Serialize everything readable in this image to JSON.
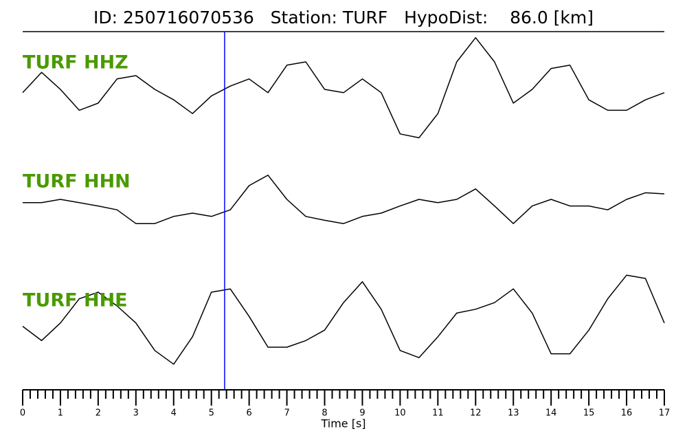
{
  "chart_data": {
    "type": "line",
    "title": "ID: 250716070536   Station: TURF   HypoDist:    86.0 [km]",
    "xlabel": "Time [s]",
    "x": [
      0,
      0.5,
      1,
      1.5,
      2,
      2.5,
      3,
      3.5,
      4,
      4.5,
      5,
      5.5,
      6,
      6.5,
      7,
      7.5,
      8,
      8.5,
      9,
      9.5,
      10,
      10.5,
      11,
      11.5,
      12,
      12.5,
      13,
      13.5,
      14,
      14.5,
      15,
      15.5,
      16,
      16.5,
      17
    ],
    "xlim": [
      0,
      17
    ],
    "xticks": [
      0,
      1,
      2,
      3,
      4,
      5,
      6,
      7,
      8,
      9,
      10,
      11,
      12,
      13,
      14,
      15,
      16,
      17
    ],
    "xminorticks": [
      0.2,
      0.4,
      0.6,
      0.8,
      1.2,
      1.4,
      1.6,
      1.8,
      2.2,
      2.4,
      2.6,
      2.8,
      3.2,
      3.4,
      3.6,
      3.8,
      4.2,
      4.4,
      4.6,
      4.8,
      5.2,
      5.4,
      5.6,
      5.8,
      6.2,
      6.4,
      6.6,
      6.8,
      7.2,
      7.4,
      7.6,
      7.8,
      8.2,
      8.4,
      8.6,
      8.8,
      9.2,
      9.4,
      9.6,
      9.8,
      10.2,
      10.4,
      10.6,
      10.8,
      11.2,
      11.4,
      11.6,
      11.8,
      12.2,
      12.4,
      12.6,
      12.8,
      13.2,
      13.4,
      13.6,
      13.8,
      14.2,
      14.4,
      14.6,
      14.8,
      15.2,
      15.4,
      15.6,
      15.8,
      16.2,
      16.4,
      16.6,
      16.8
    ],
    "ylim": [
      -1,
      1
    ],
    "pick": 5.35,
    "pick_color": "#0000ff",
    "label_color": "#4a9a00",
    "series": [
      {
        "name": "TURF HHZ",
        "color": "#000000",
        "values": [
          -0.06,
          0.31,
          0,
          -0.38,
          -0.25,
          0.19,
          0.25,
          0,
          -0.19,
          -0.44,
          -0.12,
          0.06,
          0.19,
          -0.06,
          0.44,
          0.5,
          0,
          -0.06,
          0.19,
          -0.06,
          -0.81,
          -0.88,
          -0.44,
          0.5,
          0.94,
          0.5,
          -0.25,
          0,
          0.38,
          0.44,
          -0.19,
          -0.38,
          -0.38,
          -0.19,
          -0.06
        ]
      },
      {
        "name": "TURF HHN",
        "color": "#000000",
        "values": [
          -0.06,
          -0.06,
          0,
          -0.06,
          -0.12,
          -0.19,
          -0.44,
          -0.44,
          -0.31,
          -0.25,
          -0.31,
          -0.19,
          0.25,
          0.44,
          0,
          -0.31,
          -0.38,
          -0.44,
          -0.31,
          -0.25,
          -0.12,
          0,
          -0.06,
          0,
          0.19,
          -0.12,
          -0.44,
          -0.12,
          0,
          -0.12,
          -0.12,
          -0.19,
          0,
          0.12,
          0.1
        ]
      },
      {
        "name": "TURF HHE",
        "color": "#000000",
        "values": [
          -0.12,
          -0.38,
          -0.06,
          0.38,
          0.5,
          0.25,
          -0.06,
          -0.56,
          -0.81,
          -0.31,
          0.5,
          0.56,
          0.06,
          -0.5,
          -0.5,
          -0.38,
          -0.19,
          0.31,
          0.69,
          0.19,
          -0.56,
          -0.69,
          -0.31,
          0.12,
          0.19,
          0.31,
          0.56,
          0.12,
          -0.62,
          -0.62,
          -0.19,
          0.38,
          0.81,
          0.75,
          -0.06
        ]
      }
    ]
  }
}
